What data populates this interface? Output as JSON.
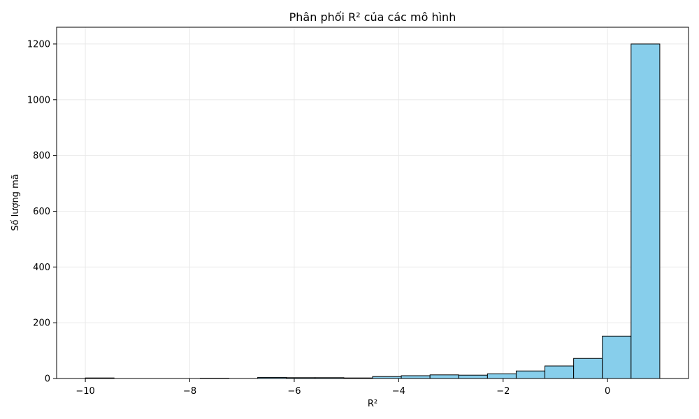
{
  "chart_data": {
    "type": "bar",
    "title": "Phân phối R² của các mô hình",
    "xlabel": "R²",
    "ylabel": "Số lượng mã",
    "xlim": [
      -10.55,
      1.55
    ],
    "ylim": [
      0,
      1260
    ],
    "xticks": [
      -10,
      -8,
      -6,
      -4,
      -2,
      0
    ],
    "xtick_labels": [
      "−10",
      "−8",
      "−6",
      "−4",
      "−2",
      "0"
    ],
    "yticks": [
      0,
      200,
      400,
      600,
      800,
      1000,
      1200
    ],
    "ytick_labels": [
      "0",
      "200",
      "400",
      "600",
      "800",
      "1000",
      "1200"
    ],
    "grid": true,
    "bar_color": "#87CEEB",
    "edge_color": "#000000",
    "bins": [
      {
        "x0": -10.0,
        "x1": -9.45,
        "count": 2
      },
      {
        "x0": -9.45,
        "x1": -8.9,
        "count": 0
      },
      {
        "x0": -8.9,
        "x1": -8.35,
        "count": 0
      },
      {
        "x0": -8.35,
        "x1": -7.8,
        "count": 0
      },
      {
        "x0": -7.8,
        "x1": -7.25,
        "count": 1
      },
      {
        "x0": -7.25,
        "x1": -6.7,
        "count": 0
      },
      {
        "x0": -6.7,
        "x1": -6.15,
        "count": 4
      },
      {
        "x0": -6.15,
        "x1": -5.6,
        "count": 3
      },
      {
        "x0": -5.6,
        "x1": -5.05,
        "count": 3
      },
      {
        "x0": -5.05,
        "x1": -4.5,
        "count": 2
      },
      {
        "x0": -4.5,
        "x1": -3.95,
        "count": 7
      },
      {
        "x0": -3.95,
        "x1": -3.4,
        "count": 10
      },
      {
        "x0": -3.4,
        "x1": -2.85,
        "count": 13
      },
      {
        "x0": -2.85,
        "x1": -2.3,
        "count": 12
      },
      {
        "x0": -2.3,
        "x1": -1.75,
        "count": 17
      },
      {
        "x0": -1.75,
        "x1": -1.2,
        "count": 27
      },
      {
        "x0": -1.2,
        "x1": -0.65,
        "count": 45
      },
      {
        "x0": -0.65,
        "x1": -0.1,
        "count": 72
      },
      {
        "x0": -0.1,
        "x1": 0.45,
        "count": 152
      },
      {
        "x0": 0.45,
        "x1": 1.0,
        "count": 1200
      }
    ]
  }
}
